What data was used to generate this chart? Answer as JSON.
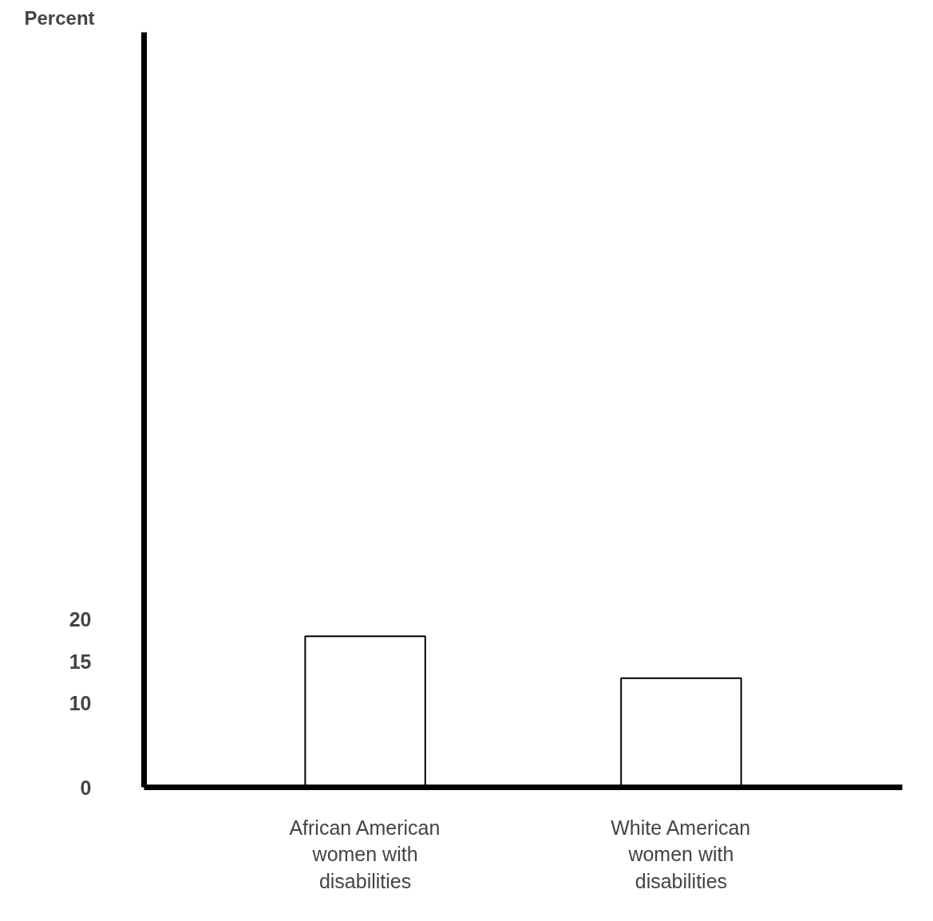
{
  "chart_data": {
    "type": "bar",
    "ylabel": "Percent",
    "categories": [
      "African American women with disabilities",
      "White American women with disabilities"
    ],
    "values": [
      18,
      13
    ],
    "color": "#ffffff",
    "ylim": [
      0,
      90
    ],
    "yticks": [
      0,
      10,
      15,
      20
    ],
    "grid": false
  }
}
